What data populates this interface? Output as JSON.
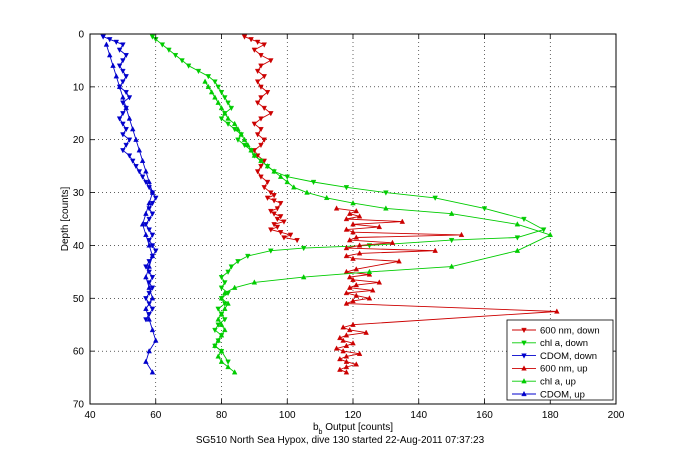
{
  "chart_data": {
    "type": "line",
    "xlabel_main": "b",
    "xlabel_sub": "b",
    "xlabel_rest": " Output [counts]",
    "ylabel": "Depth [counts]",
    "caption": "SG510 North Sea Hypox, dive 130 started 22-Aug-2011 07:37:23",
    "xlim": [
      40,
      200
    ],
    "ylim": [
      0,
      70
    ],
    "y_reversed": true,
    "grid": true,
    "legend_placement": "bottom-right",
    "x_ticks": [
      40,
      60,
      80,
      100,
      120,
      140,
      160,
      180,
      200
    ],
    "y_ticks": [
      0,
      10,
      20,
      30,
      40,
      50,
      60,
      70
    ],
    "series": [
      {
        "name": "600 nm, down",
        "color": "#cc0000",
        "marker": "triangle-down",
        "x": [
          87,
          89,
          91,
          93,
          90,
          92,
          95,
          92,
          91,
          93,
          91,
          92,
          94,
          92,
          91,
          93,
          95,
          92,
          90,
          92,
          91,
          93,
          92,
          90,
          91,
          93,
          92,
          91,
          92,
          94,
          93,
          95,
          96,
          94,
          96,
          98,
          97,
          95,
          96,
          98,
          97,
          99,
          96,
          97,
          95,
          98,
          101,
          99,
          103
        ],
        "y": [
          0.5,
          1,
          1.5,
          2,
          3,
          4,
          5,
          6,
          7,
          8,
          9,
          10,
          11,
          12,
          13,
          14,
          15,
          16,
          17,
          18,
          19,
          20,
          21,
          22,
          23,
          24,
          25,
          26,
          27,
          28,
          29,
          30,
          30.5,
          31,
          31.5,
          32,
          33,
          33.5,
          34,
          34.5,
          35,
          35.5,
          36,
          36.5,
          37,
          37.5,
          38,
          38.5,
          39
        ]
      },
      {
        "name": "chl a, down",
        "color": "#00cc00",
        "marker": "triangle-down",
        "x": [
          59,
          60,
          62,
          64,
          66,
          68,
          70,
          73,
          76,
          78,
          79,
          80,
          81,
          82,
          83,
          81,
          80,
          82,
          84,
          86,
          85,
          87,
          89,
          90,
          92,
          94,
          96,
          100,
          108,
          118,
          130,
          145,
          160,
          172,
          178,
          170,
          150,
          125,
          105,
          95,
          88,
          85,
          83,
          82,
          80,
          81,
          80,
          82,
          80,
          81,
          79,
          80,
          81,
          79,
          78,
          80,
          79,
          78,
          80,
          82
        ],
        "y": [
          0.5,
          1,
          2,
          3,
          4,
          5,
          6,
          7,
          8,
          9,
          10,
          11,
          12,
          13,
          14,
          15,
          16,
          17,
          18,
          19,
          20,
          21,
          22,
          23,
          24,
          25,
          26,
          27,
          28,
          29,
          30,
          31,
          33,
          35,
          37,
          38.5,
          39,
          40,
          40.5,
          41,
          42,
          43,
          44,
          45,
          46,
          47,
          48,
          49,
          50,
          51,
          52,
          53,
          54,
          55,
          56,
          57,
          58,
          59,
          60,
          62
        ]
      },
      {
        "name": "CDOM, down",
        "color": "#0000cc",
        "marker": "triangle-down",
        "x": [
          44,
          46,
          48,
          50,
          49,
          51,
          50,
          49,
          50,
          51,
          50,
          49,
          51,
          52,
          50,
          51,
          50,
          49,
          50,
          51,
          50,
          52,
          51,
          50,
          52,
          53,
          54,
          55,
          56,
          57,
          58,
          59,
          60,
          59,
          58,
          59,
          58,
          57,
          58,
          59,
          58,
          59,
          60,
          59,
          58,
          57,
          58,
          59,
          58,
          59,
          58,
          57,
          58,
          59,
          58,
          57
        ],
        "y": [
          0.5,
          1,
          1.5,
          2,
          3,
          4,
          5,
          6,
          7,
          8,
          9,
          10,
          11,
          12,
          13,
          14,
          15,
          16,
          17,
          18,
          19,
          20,
          21,
          22,
          23,
          24,
          25,
          26,
          27,
          28,
          29,
          30,
          31,
          32,
          33,
          34,
          35,
          36,
          37,
          38,
          39,
          40,
          41,
          42,
          43,
          44,
          45,
          46,
          47,
          48,
          49,
          50,
          51,
          52,
          53,
          54
        ]
      },
      {
        "name": "600 nm, up",
        "color": "#cc0000",
        "marker": "triangle-up",
        "x": [
          118,
          116,
          118,
          121,
          118,
          116,
          118,
          122,
          117,
          115,
          118,
          120,
          117,
          116,
          118,
          124,
          119,
          117,
          120,
          182,
          118,
          120,
          125,
          121,
          118,
          126,
          119,
          121,
          128,
          120,
          119,
          125,
          118,
          121,
          134,
          120,
          118,
          122,
          145,
          118,
          122,
          132,
          119,
          121,
          153,
          120,
          118,
          128,
          120,
          135,
          118,
          122,
          119,
          121,
          115
        ],
        "y": [
          64,
          63.5,
          63,
          62.5,
          62,
          61.5,
          61,
          60.5,
          60,
          59.5,
          59,
          58.5,
          58,
          57.5,
          57,
          56.5,
          56,
          55.5,
          55,
          52.5,
          51,
          50.5,
          50,
          49.5,
          49,
          48.5,
          48,
          47.5,
          47,
          46.5,
          46,
          45.5,
          45,
          44.5,
          43,
          42.5,
          42,
          41.5,
          41,
          40.5,
          40,
          39.5,
          39,
          38.5,
          38,
          37.5,
          37,
          36.5,
          36,
          35.5,
          35,
          34.5,
          34,
          33.5,
          33
        ]
      },
      {
        "name": "chl a, up",
        "color": "#00cc00",
        "marker": "triangle-up",
        "x": [
          84,
          82,
          80,
          79,
          80,
          78,
          79,
          80,
          81,
          80,
          79,
          80,
          81,
          82,
          80,
          81,
          84,
          90,
          105,
          125,
          150,
          170,
          180,
          170,
          150,
          130,
          120,
          112,
          106,
          102,
          100,
          98,
          96,
          94,
          92,
          90,
          89,
          88,
          87,
          86,
          85,
          84,
          82,
          81,
          80,
          79,
          78,
          77,
          76,
          75
        ],
        "y": [
          64,
          63,
          62,
          61,
          60,
          59,
          58,
          57,
          56,
          55,
          54,
          53,
          52,
          51,
          50,
          49,
          48,
          47,
          46,
          45,
          44,
          41,
          38,
          36,
          34,
          33,
          32,
          31,
          30,
          29,
          28,
          27,
          26,
          25,
          24,
          23,
          22,
          21,
          20,
          19,
          18,
          17,
          16,
          15,
          14,
          13,
          12,
          11,
          10,
          9
        ]
      },
      {
        "name": "CDOM, up",
        "color": "#0000cc",
        "marker": "triangle-up",
        "x": [
          59,
          57,
          58,
          60,
          59,
          58,
          57,
          59,
          58,
          57,
          58,
          59,
          58,
          57,
          56,
          57,
          58,
          59,
          58,
          57,
          56,
          55,
          54,
          53,
          52,
          51,
          50,
          49,
          48,
          47,
          46,
          45
        ],
        "y": [
          64,
          62,
          60,
          58,
          56,
          54,
          52,
          50,
          48,
          46,
          44,
          42,
          40,
          38,
          36,
          34,
          32,
          30,
          28,
          26,
          24,
          22,
          20,
          18,
          16,
          14,
          12,
          10,
          8,
          6,
          4,
          2
        ]
      }
    ]
  }
}
